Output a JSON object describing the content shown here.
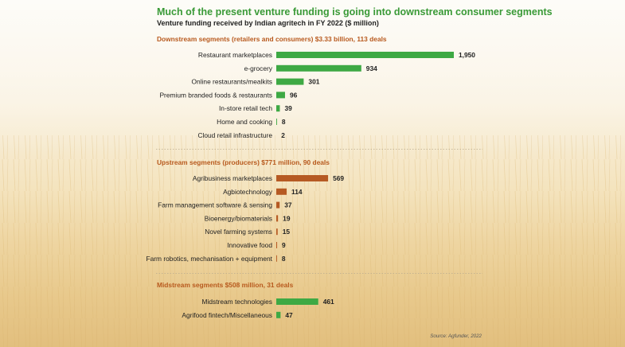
{
  "colors": {
    "title": "#3a9a37",
    "section": "#b85a1e",
    "downstream_bar": "#3ea944",
    "upstream_bar": "#b65a23",
    "midstream_bar": "#3ea944"
  },
  "chart_data": {
    "type": "bar",
    "orientation": "horizontal",
    "title": "Much of the present venture funding is going into downstream consumer segments",
    "subtitle": "Venture funding received by Indian agritech in FY 2022 ($ million)",
    "source": "Source: Agfunder, 2022",
    "xlim": [
      0,
      1950
    ],
    "grid": false,
    "sections": [
      {
        "title": "Downstream segments (retailers and consumers) $3.33 billion, 113 deals",
        "color_key": "downstream_bar",
        "categories": [
          "Restaurant marketplaces",
          "e-grocery",
          "Online restaurants/mealkits",
          "Premium branded foods & restaurants",
          "In-store retail tech",
          "Home and cooking",
          "Cloud retail infrastructure"
        ],
        "values": [
          1950,
          934,
          301,
          96,
          39,
          8,
          2
        ],
        "labels": [
          "1,950",
          "934",
          "301",
          "96",
          "39",
          "8",
          "2"
        ]
      },
      {
        "title": "Upstream segments (producers) $771 million, 90 deals",
        "color_key": "upstream_bar",
        "categories": [
          "Agribusiness marketplaces",
          "Agbiotechnology",
          "Farm management software & sensing",
          "Bioenergy/biomaterials",
          "Novel farming systems",
          "Innovative food",
          "Farm robotics, mechanisation + equipment"
        ],
        "values": [
          569,
          114,
          37,
          19,
          15,
          9,
          8
        ],
        "labels": [
          "569",
          "114",
          "37",
          "19",
          "15",
          "9",
          "8"
        ]
      },
      {
        "title": "Midstream segments $508 million, 31 deals",
        "color_key": "midstream_bar",
        "categories": [
          "Midstream technologies",
          "Agrifood fintech/Miscellaneous"
        ],
        "values": [
          461,
          47
        ],
        "labels": [
          "461",
          "47"
        ]
      }
    ]
  }
}
